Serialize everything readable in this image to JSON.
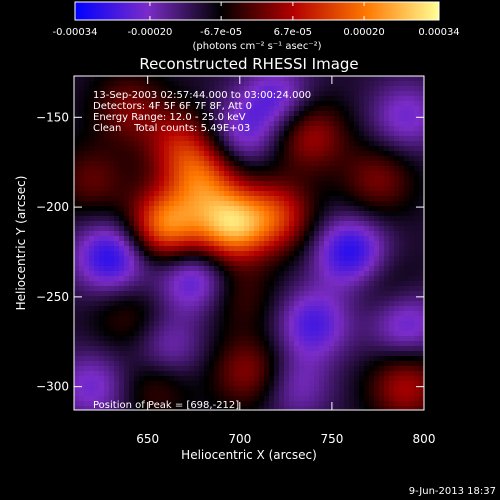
{
  "chart_data": {
    "type": "heatmap",
    "title": "Reconstructed RHESSI Image",
    "xlabel": "Heliocentric X (arcsec)",
    "ylabel": "Heliocentric Y (arcsec)",
    "xlim": [
      610,
      800
    ],
    "ylim": [
      -313,
      -127
    ],
    "x_ticks": [
      650,
      700,
      750,
      800
    ],
    "y_ticks": [
      -150,
      -200,
      -250,
      -300
    ],
    "colorbar": {
      "range": [
        -0.00034,
        0.00034
      ],
      "tick_values": [
        -0.00034,
        -0.0002,
        -6.7e-05,
        6.7e-05,
        0.0002,
        0.00034
      ],
      "tick_labels": [
        "-0.00034",
        "-0.00020",
        "-6.7e-05",
        "6.7e-05",
        "0.00020",
        "0.00034"
      ],
      "units": "(photons cm⁻² s⁻¹ asec⁻²)",
      "colors": [
        "#0000ff",
        "#7b2cc8",
        "#000000",
        "#b40000",
        "#ff7800",
        "#ffff96"
      ]
    },
    "annotations": [
      "13-Sep-2003 02:57:44.000 to 03:00:24.000",
      "Detectors: 4F 5F 6F 7F 8F, Att 0",
      "Energy Range: 12.0 - 25.0 keV",
      "Clean    Total counts: 5.49E+03"
    ],
    "peak_label": "Position of Peak = [698,-212]",
    "peak_position": [
      698,
      -212
    ],
    "footer_date": "9-Jun-2013 18:37",
    "blobs": [
      {
        "x": 695,
        "y": -210,
        "v": 0.00034
      },
      {
        "x": 660,
        "y": -210,
        "v": 0.0003
      },
      {
        "x": 680,
        "y": -185,
        "v": 0.00022
      },
      {
        "x": 668,
        "y": -165,
        "v": 0.00016
      },
      {
        "x": 720,
        "y": -205,
        "v": 0.0002
      },
      {
        "x": 738,
        "y": -160,
        "v": 0.00016
      },
      {
        "x": 775,
        "y": -185,
        "v": 0.00012
      },
      {
        "x": 640,
        "y": -145,
        "v": 0.00012
      },
      {
        "x": 620,
        "y": -185,
        "v": 0.0001
      },
      {
        "x": 700,
        "y": -250,
        "v": 8e-05
      },
      {
        "x": 640,
        "y": -262,
        "v": 8e-05
      },
      {
        "x": 705,
        "y": -292,
        "v": 0.00014
      },
      {
        "x": 655,
        "y": -298,
        "v": 0.0001
      },
      {
        "x": 790,
        "y": -300,
        "v": 0.00016
      },
      {
        "x": 780,
        "y": -245,
        "v": 6e-05
      },
      {
        "x": 720,
        "y": -140,
        "v": -0.00014
      },
      {
        "x": 700,
        "y": -160,
        "v": -0.00012
      },
      {
        "x": 630,
        "y": -228,
        "v": -0.0002
      },
      {
        "x": 760,
        "y": -225,
        "v": -0.0002
      },
      {
        "x": 740,
        "y": -265,
        "v": -0.00016
      },
      {
        "x": 675,
        "y": -240,
        "v": -0.00016
      },
      {
        "x": 660,
        "y": -280,
        "v": -0.00012
      },
      {
        "x": 620,
        "y": -300,
        "v": -0.00012
      },
      {
        "x": 790,
        "y": -150,
        "v": -0.00012
      },
      {
        "x": 730,
        "y": -300,
        "v": -0.0001
      },
      {
        "x": 790,
        "y": -265,
        "v": -0.00014
      }
    ]
  }
}
